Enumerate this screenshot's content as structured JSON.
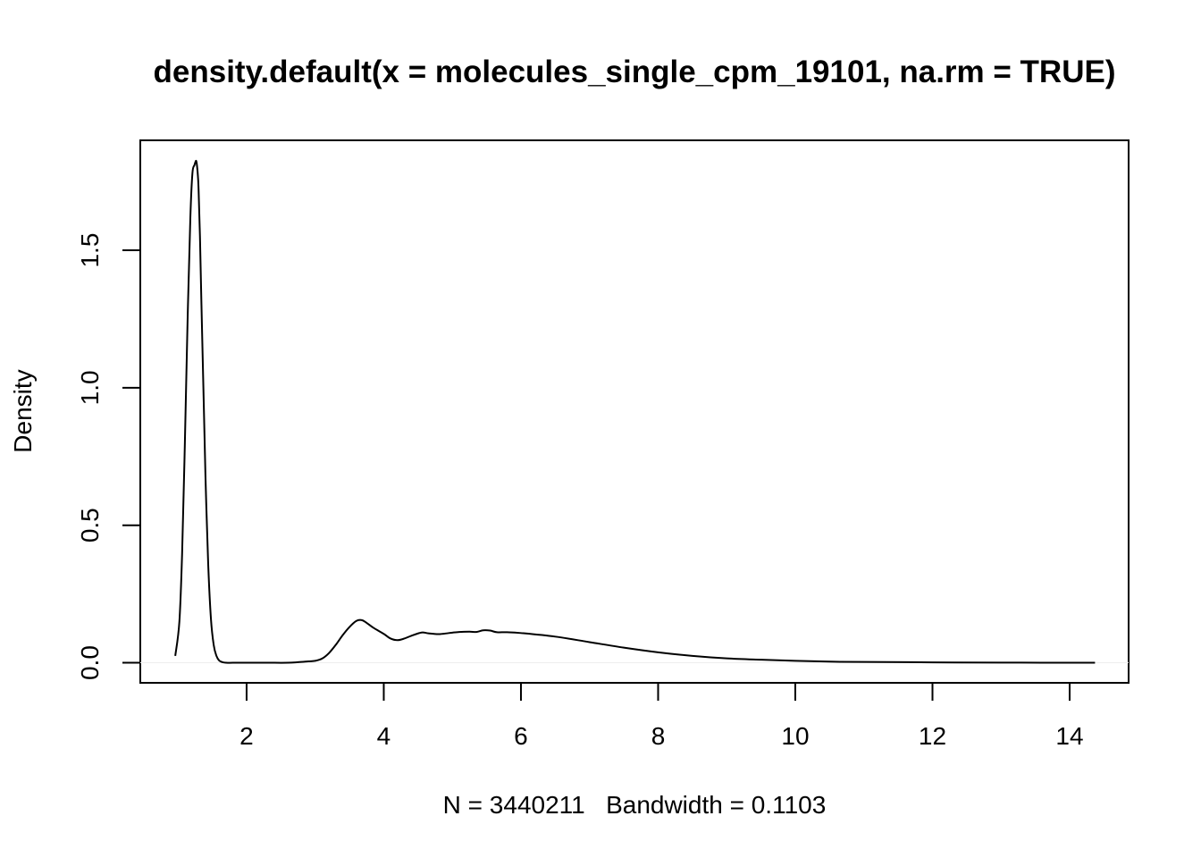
{
  "chart_data": {
    "type": "line",
    "title": "density.default(x = molecules_single_cpm_19101, na.rm = TRUE)",
    "xlabel": "N = 3440211   Bandwidth = 0.1103",
    "ylabel": "Density",
    "xlim": [
      0.45,
      14.86
    ],
    "ylim": [
      -0.073,
      1.9
    ],
    "x_ticks": [
      2,
      4,
      6,
      8,
      10,
      12,
      14
    ],
    "x_tick_labels": [
      "2",
      "4",
      "6",
      "8",
      "10",
      "12",
      "14"
    ],
    "y_ticks": [
      0.0,
      0.5,
      1.0,
      1.5
    ],
    "y_tick_labels": [
      "0.0",
      "0.5",
      "1.0",
      "1.5"
    ],
    "baseline": 0,
    "line_color": "#000000",
    "baseline_color": "#eeeeee",
    "series": [
      {
        "x": [
          0.96,
          1.02,
          1.06,
          1.1,
          1.14,
          1.18,
          1.21,
          1.24,
          1.26,
          1.27,
          1.28,
          1.29,
          1.3,
          1.32,
          1.34,
          1.37,
          1.4,
          1.44,
          1.48,
          1.52,
          1.56,
          1.6,
          1.65,
          1.7,
          1.8,
          2.0,
          2.3,
          2.6,
          2.75,
          2.9,
          3.0,
          3.1,
          3.2,
          3.3,
          3.4,
          3.5,
          3.6,
          3.68,
          3.75,
          3.85,
          4.0,
          4.1,
          4.2,
          4.3,
          4.4,
          4.55,
          4.65,
          4.8,
          4.95,
          5.1,
          5.25,
          5.35,
          5.45,
          5.55,
          5.65,
          5.8,
          6.0,
          6.5,
          7.0,
          7.5,
          8.0,
          8.5,
          9.0,
          9.5,
          10.0,
          10.5,
          11.0,
          12.0,
          13.0,
          14.37
        ],
        "y": [
          0.025,
          0.15,
          0.4,
          0.8,
          1.25,
          1.62,
          1.78,
          1.81,
          1.825,
          1.82,
          1.8,
          1.77,
          1.72,
          1.55,
          1.32,
          1.0,
          0.68,
          0.36,
          0.16,
          0.065,
          0.025,
          0.008,
          0.002,
          0.0,
          0.0,
          0.0,
          0.0,
          0.0,
          0.002,
          0.005,
          0.007,
          0.015,
          0.035,
          0.065,
          0.1,
          0.13,
          0.152,
          0.155,
          0.145,
          0.127,
          0.105,
          0.088,
          0.082,
          0.088,
          0.098,
          0.11,
          0.107,
          0.104,
          0.108,
          0.112,
          0.113,
          0.112,
          0.118,
          0.117,
          0.111,
          0.111,
          0.108,
          0.095,
          0.075,
          0.055,
          0.038,
          0.025,
          0.016,
          0.011,
          0.007,
          0.004,
          0.003,
          0.0015,
          0.0006,
          0.0
        ]
      }
    ]
  }
}
